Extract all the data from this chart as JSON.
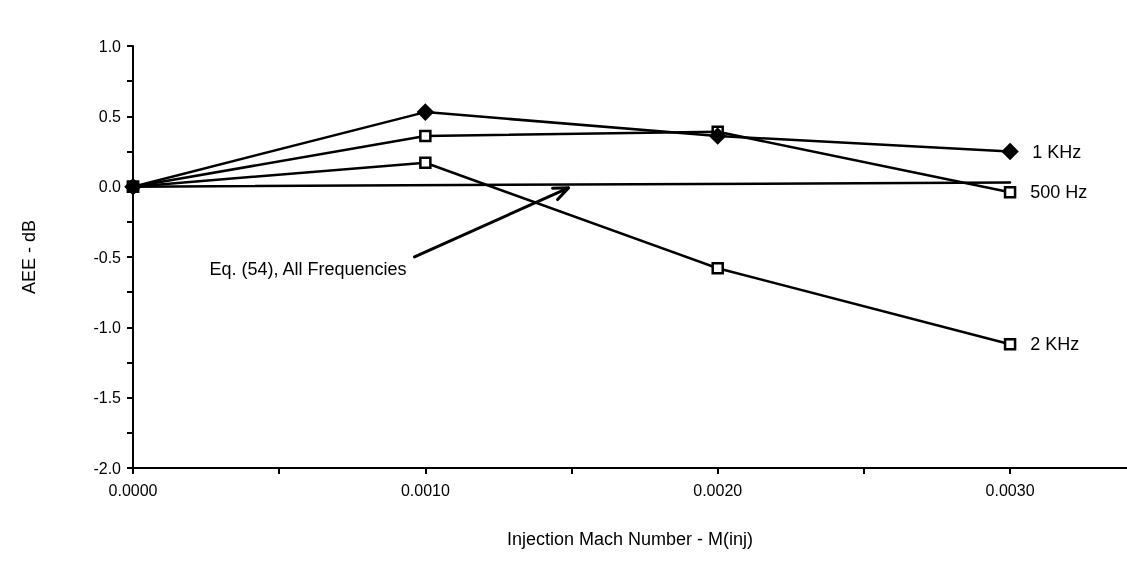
{
  "chart_data": {
    "type": "line",
    "xlabel": "Injection Mach Number - M(inj)",
    "ylabel": "AEE - dB",
    "xlim": [
      0,
      0.0034
    ],
    "ylim": [
      -2,
      1
    ],
    "xticks": [
      {
        "value": 0,
        "label": "0.0000"
      },
      {
        "value": 0.0005,
        "label": null
      },
      {
        "value": 0.001,
        "label": "0.0010"
      },
      {
        "value": 0.0015,
        "label": null
      },
      {
        "value": 0.002,
        "label": "0.0020"
      },
      {
        "value": 0.0025,
        "label": null
      },
      {
        "value": 0.003,
        "label": "0.0030"
      }
    ],
    "yticks": [
      {
        "value": -2,
        "label": "-2.0"
      },
      {
        "value": -1.75,
        "label": null
      },
      {
        "value": -1.5,
        "label": "-1.5"
      },
      {
        "value": -1.25,
        "label": null
      },
      {
        "value": -1,
        "label": "-1.0"
      },
      {
        "value": -0.75,
        "label": null
      },
      {
        "value": -0.5,
        "label": "-0.5"
      },
      {
        "value": -0.25,
        "label": null
      },
      {
        "value": 0,
        "label": "0.0"
      },
      {
        "value": 0.25,
        "label": null
      },
      {
        "value": 0.5,
        "label": "0.5"
      },
      {
        "value": 0.75,
        "label": null
      },
      {
        "value": 1,
        "label": "1.0"
      }
    ],
    "grid": false,
    "legend": false,
    "line_style": "solid",
    "series": [
      {
        "name": "1 KHz",
        "color": "#000000",
        "marker": "diamond",
        "x": [
          0,
          0.001,
          0.002,
          0.003
        ],
        "values": [
          0,
          0.53,
          0.36,
          0.25
        ]
      },
      {
        "name": "500 Hz",
        "color": "#000000",
        "marker": "square",
        "x": [
          0,
          0.001,
          0.002,
          0.003
        ],
        "values": [
          0,
          0.36,
          0.39,
          -0.04
        ]
      },
      {
        "name": "2 KHz",
        "color": "#000000",
        "marker": "square",
        "x": [
          0,
          0.001,
          0.002,
          0.003
        ],
        "values": [
          0,
          0.17,
          -0.58,
          -1.12
        ]
      },
      {
        "color": "#000000",
        "marker": "none",
        "x": [
          0,
          0.003
        ],
        "values": [
          0,
          0.03
        ]
      }
    ],
    "annotations": [
      {
        "text": "Eq. (54), All Frequencies",
        "x": 0.0015,
        "y": 0.02
      }
    ]
  }
}
